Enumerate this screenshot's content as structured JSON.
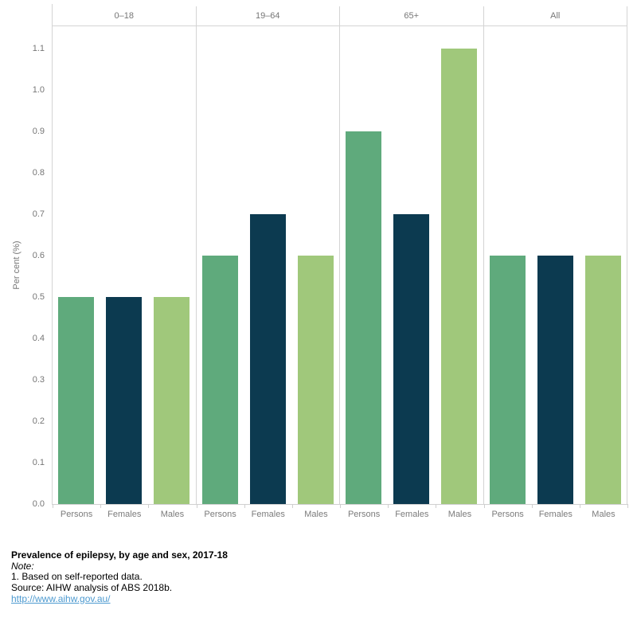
{
  "chart_data": {
    "type": "bar",
    "title": "Prevalence of epilepsy, by age and sex, 2017-18",
    "ylabel": "Per cent (%)",
    "panels": [
      "0–18",
      "19–64",
      "65+",
      "All"
    ],
    "categories": [
      "Persons",
      "Females",
      "Males"
    ],
    "series": [
      {
        "panel": "0–18",
        "values": [
          0.5,
          0.5,
          0.5
        ]
      },
      {
        "panel": "19–64",
        "values": [
          0.6,
          0.7,
          0.6
        ]
      },
      {
        "panel": "65+",
        "values": [
          0.9,
          0.7,
          1.1
        ]
      },
      {
        "panel": "All",
        "values": [
          0.6,
          0.6,
          0.6
        ]
      }
    ],
    "yticks": [
      0.0,
      0.1,
      0.2,
      0.3,
      0.4,
      0.5,
      0.6,
      0.7,
      0.8,
      0.9,
      1.0,
      1.1
    ],
    "ylim": [
      0,
      1.15
    ],
    "grid": false,
    "legend": "none",
    "colors": {
      "Persons": "#5FAA7C",
      "Females": "#0C3A50",
      "Males": "#A0C87B"
    },
    "axis_line_color": "#d4d4d4",
    "tick_text_color": "#767676"
  },
  "footer": {
    "title": "Prevalence of epilepsy, by age and sex, 2017-18",
    "note_label": "Note:",
    "note1": "1. Based on self-reported data.",
    "source": "Source: AIHW analysis of ABS 2018b.",
    "link": "http://www.aihw.gov.au/"
  }
}
